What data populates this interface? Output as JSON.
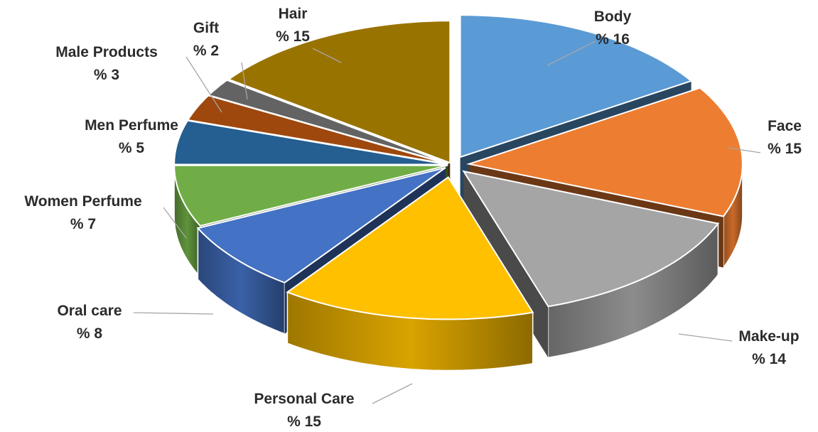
{
  "chart_data": {
    "type": "pie",
    "style": "3d-exploded",
    "start_angle_deg": 0,
    "direction": "clockwise",
    "slices": [
      {
        "name": "Body",
        "value": 16,
        "label": "% 16",
        "color": "#5b9bd5"
      },
      {
        "name": "Face",
        "value": 15,
        "label": "% 15",
        "color": "#ed7d31"
      },
      {
        "name": "Make-up",
        "value": 14,
        "label": "% 14",
        "color": "#a5a5a5"
      },
      {
        "name": "Personal Care",
        "value": 15,
        "label": "% 15",
        "color": "#ffc000"
      },
      {
        "name": "Oral care",
        "value": 8,
        "label": "% 8",
        "color": "#4472c4"
      },
      {
        "name": "Women Perfume",
        "value": 7,
        "label": "% 7",
        "color": "#70ad47"
      },
      {
        "name": "Men Perfume",
        "value": 5,
        "label": "% 5",
        "color": "#255e91"
      },
      {
        "name": "Male Products",
        "value": 3,
        "label": "% 3",
        "color": "#9e480e"
      },
      {
        "name": "Gift",
        "value": 2,
        "label": "% 2",
        "color": "#636363"
      },
      {
        "name": "Hair",
        "value": 15,
        "label": "% 15",
        "color": "#997300"
      }
    ]
  }
}
